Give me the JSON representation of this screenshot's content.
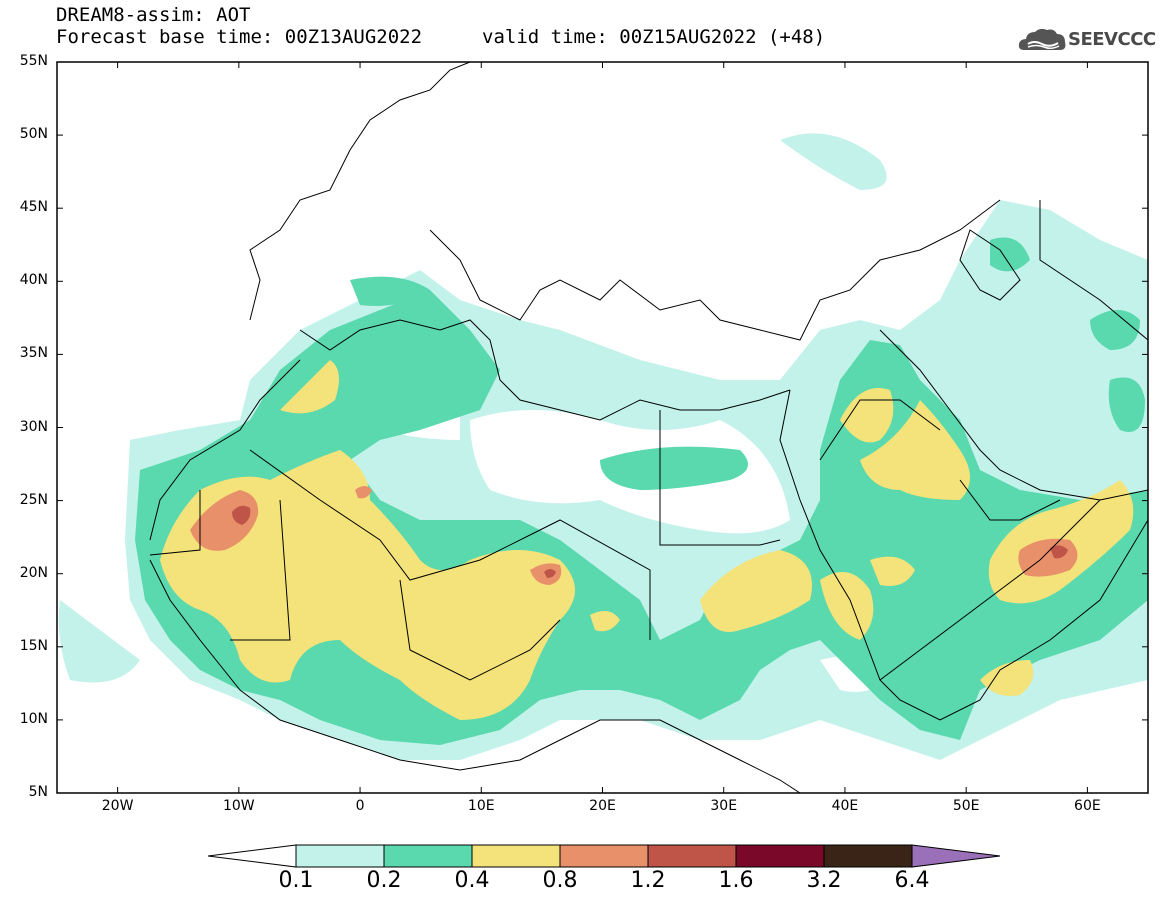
{
  "header": {
    "title": "DREAM8-assim: AOT",
    "base_time": "Forecast base time: 00Z13AUG2022",
    "valid_time": "valid time: 00Z15AUG2022 (+48)",
    "logo_text": "SEEVCCC",
    "logo_icon": "cloud-logo-icon"
  },
  "map": {
    "lon_range": [
      -25,
      65
    ],
    "lat_range": [
      5,
      55
    ],
    "y_labels": [
      "55N",
      "50N",
      "45N",
      "40N",
      "35N",
      "30N",
      "25N",
      "20N",
      "15N",
      "10N",
      "5N"
    ],
    "x_labels": [
      "20W",
      "10W",
      "0",
      "10E",
      "20E",
      "30E",
      "40E",
      "50E",
      "60E"
    ]
  },
  "colorbar": {
    "labels": [
      "0.1",
      "0.2",
      "0.4",
      "0.8",
      "1.2",
      "1.6",
      "3.2",
      "6.4"
    ],
    "colors": [
      "#c2f2ea",
      "#5ad8ae",
      "#f4e37a",
      "#e8906a",
      "#bf5548",
      "#7a0828",
      "#3a2418",
      "#9a70b8"
    ]
  }
}
